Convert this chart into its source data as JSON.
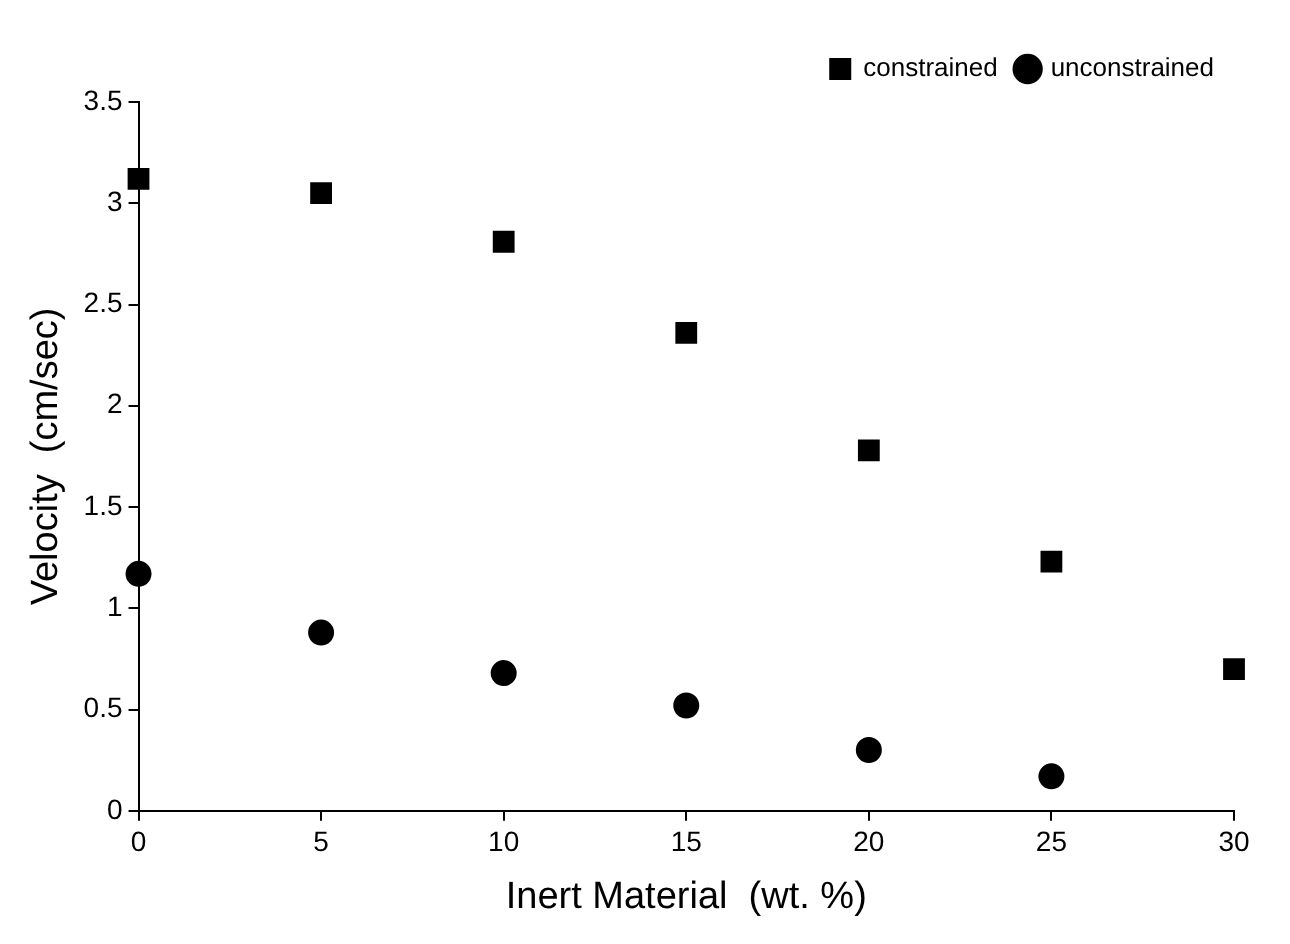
{
  "chart_data": {
    "type": "scatter",
    "xlabel": "Inert Material  (wt. %)",
    "ylabel": "Velocity  (cm/sec)",
    "x": [
      0,
      5,
      10,
      15,
      20,
      25,
      30
    ],
    "series": [
      {
        "name": "constrained",
        "color": "#000000",
        "marker": "square",
        "values": [
          3.12,
          3.05,
          2.81,
          2.36,
          1.78,
          1.23,
          0.7
        ]
      },
      {
        "name": "unconstrained",
        "color": "#000000",
        "marker": "circle",
        "values": [
          1.17,
          0.88,
          0.68,
          0.52,
          0.3,
          0.17,
          null
        ]
      }
    ],
    "xlim": [
      0,
      30
    ],
    "xticks": [
      0,
      5,
      10,
      15,
      20,
      25,
      30
    ],
    "ylim": [
      0,
      3.5
    ],
    "yticks": [
      0,
      0.5,
      1,
      1.5,
      2,
      2.5,
      3,
      3.5
    ],
    "grid": false,
    "legend": "top right"
  }
}
